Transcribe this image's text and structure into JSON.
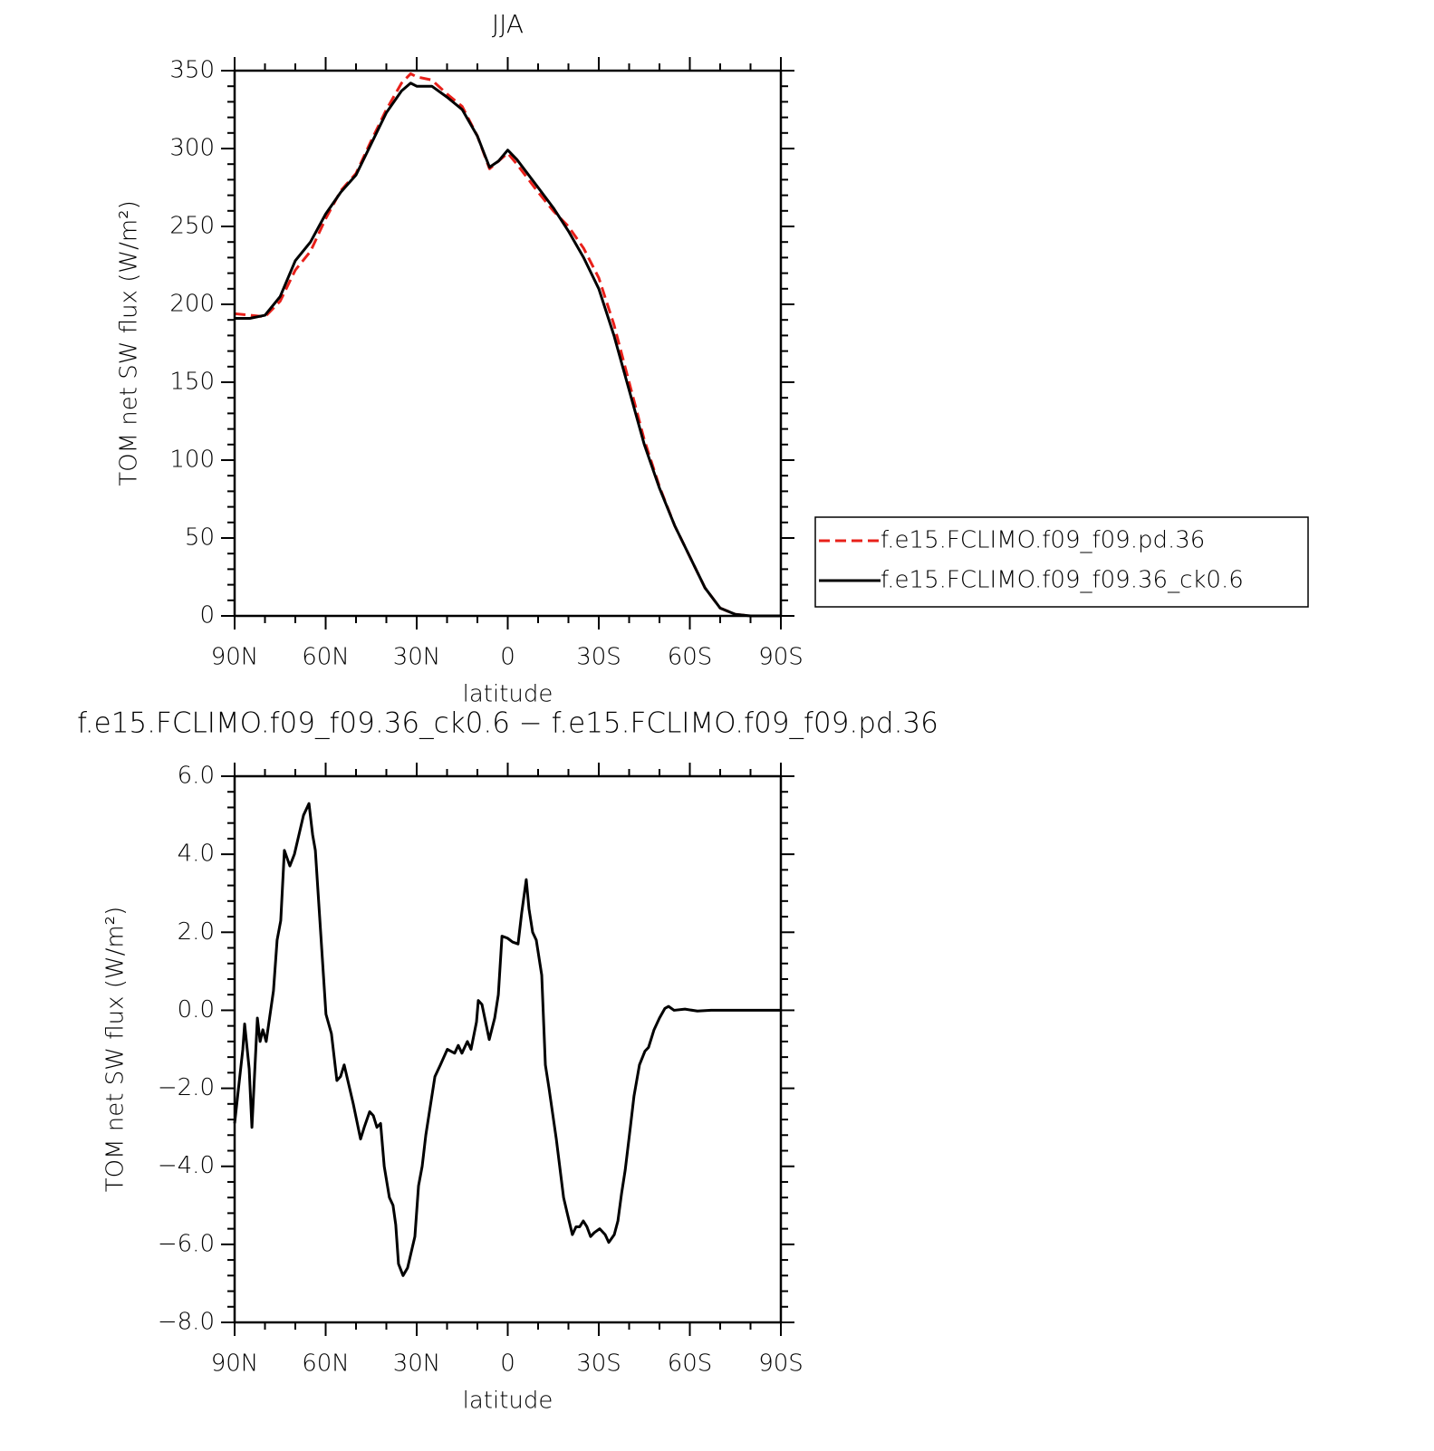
{
  "chart_data": [
    {
      "type": "line",
      "title": "JJA",
      "xlabel": "latitude",
      "ylabel": "TOM net SW flux (W/m²)",
      "xlim": [
        90,
        -90
      ],
      "ylim": [
        0,
        350
      ],
      "xticks": [
        {
          "value": 90,
          "label": "90N"
        },
        {
          "value": 60,
          "label": "60N"
        },
        {
          "value": 30,
          "label": "30N"
        },
        0,
        {
          "value": -30,
          "label": "30S"
        },
        {
          "value": -60,
          "label": "60S"
        },
        {
          "value": -90,
          "label": "90S"
        }
      ],
      "yticks": [
        0,
        50,
        100,
        150,
        200,
        250,
        300,
        350
      ],
      "legend": "outside-right",
      "x": [
        90,
        85,
        80,
        75,
        70,
        65,
        60,
        55,
        50,
        45,
        40,
        35,
        32,
        30,
        25,
        20,
        15,
        10,
        6,
        3,
        0,
        -3,
        -10,
        -15,
        -20,
        -25,
        -30,
        -35,
        -40,
        -45,
        -50,
        -55,
        -60,
        -65,
        -70,
        -75,
        -80,
        -90
      ],
      "series": [
        {
          "name": "f.e15.FCLIMO.f09_f09.pd.36",
          "color": "#e8201a",
          "line_style": "dashed",
          "values": [
            194,
            193,
            192,
            202,
            222,
            234,
            255,
            273,
            284,
            305,
            325,
            342,
            348,
            346,
            344,
            335,
            327,
            308,
            287,
            292,
            297,
            290,
            272,
            260,
            250,
            236,
            217,
            187,
            150,
            113,
            83,
            58,
            38,
            18,
            5,
            1,
            0,
            0
          ]
        },
        {
          "name": "f.e15.FCLIMO.f09_f09.36_ck0.6",
          "color": "#000000",
          "line_style": "solid",
          "values": [
            191,
            191,
            193,
            205,
            228,
            240,
            258,
            272,
            283,
            303,
            323,
            337,
            342,
            340,
            340,
            333,
            325,
            308,
            288,
            292,
            299,
            293,
            275,
            262,
            247,
            230,
            210,
            180,
            145,
            110,
            82,
            58,
            38,
            18,
            5,
            1,
            0,
            0
          ]
        }
      ]
    },
    {
      "type": "line",
      "title": "f.e15.FCLIMO.f09_f09.36_ck0.6 − f.e15.FCLIMO.f09_f09.pd.36",
      "xlabel": "latitude",
      "ylabel": "TOM net SW flux (W/m²)",
      "xlim": [
        90,
        -90
      ],
      "ylim": [
        -8,
        6
      ],
      "xticks": [
        {
          "value": 90,
          "label": "90N"
        },
        {
          "value": 60,
          "label": "60N"
        },
        {
          "value": 30,
          "label": "30N"
        },
        0,
        {
          "value": -30,
          "label": "30S"
        },
        {
          "value": -60,
          "label": "60S"
        },
        {
          "value": -90,
          "label": "90S"
        }
      ],
      "yticks": [
        {
          "value": -8,
          "label": "−8.0"
        },
        {
          "value": -6,
          "label": "−6.0"
        },
        {
          "value": -4,
          "label": "−4.0"
        },
        {
          "value": -2,
          "label": "−2.0"
        },
        {
          "value": 0,
          "label": "0.0"
        },
        {
          "value": 2,
          "label": "2.0"
        },
        {
          "value": 4,
          "label": "4.0"
        },
        {
          "value": 6,
          "label": "6.0"
        }
      ],
      "x": [
        90,
        87.3,
        86.7,
        85.2,
        84.3,
        82.5,
        81.6,
        80.7,
        79.6,
        77.2,
        76,
        74.8,
        73.6,
        71.8,
        70.3,
        67.3,
        65.5,
        64.3,
        63.4,
        59.9,
        58.1,
        56.3,
        55.1,
        53.9,
        52.1,
        50.9,
        48.5,
        47.3,
        45.5,
        44.3,
        43.1,
        41.9,
        40.7,
        39.0,
        37.8,
        36.9,
        36.0,
        34.5,
        33.0,
        31.8,
        30.6,
        29.4,
        28.2,
        27.0,
        25.8,
        24.0,
        22.2,
        19.9,
        18.7,
        17.5,
        16.3,
        15.1,
        13.3,
        12.1,
        10.3,
        9.7,
        8.5,
        7.3,
        6.1,
        4.3,
        3.1,
        1.9,
        0.1,
        -1.6,
        -3.4,
        -4.6,
        -6.1,
        -7.0,
        -8.2,
        -9.4,
        -11.2,
        -12.4,
        -13.6,
        -16.0,
        -18.4,
        -19.6,
        -21.3,
        -22.5,
        -23.7,
        -24.9,
        -26.1,
        -27.3,
        -28.5,
        -30.3,
        -32.1,
        -33.3,
        -35.1,
        -36.3,
        -37.5,
        -38.7,
        -40.4,
        -41.6,
        -43.4,
        -45.2,
        -46.4,
        -48.2,
        -50.0,
        -51.8,
        -53.0,
        -54.8,
        -58.4,
        -62.5,
        -67.0,
        -71.5,
        -90
      ],
      "series": [
        {
          "color": "#000000",
          "line_style": "solid",
          "values": [
            -2.9,
            -1.0,
            -0.35,
            -1.5,
            -3.0,
            -0.2,
            -0.8,
            -0.5,
            -0.8,
            0.5,
            1.8,
            2.3,
            4.1,
            3.7,
            4.0,
            5.0,
            5.3,
            4.5,
            4.1,
            -0.1,
            -0.6,
            -1.8,
            -1.7,
            -1.4,
            -2.0,
            -2.4,
            -3.3,
            -3.0,
            -2.6,
            -2.7,
            -3.0,
            -2.9,
            -4.0,
            -4.8,
            -5.0,
            -5.5,
            -6.5,
            -6.8,
            -6.6,
            -6.2,
            -5.8,
            -4.5,
            -4.0,
            -3.2,
            -2.6,
            -1.7,
            -1.4,
            -1.0,
            -1.05,
            -1.1,
            -0.9,
            -1.1,
            -0.8,
            -1.0,
            -0.3,
            0.25,
            0.15,
            -0.3,
            -0.75,
            -0.2,
            0.4,
            1.9,
            1.85,
            1.75,
            1.7,
            2.5,
            3.35,
            2.6,
            2.0,
            1.8,
            0.9,
            -1.4,
            -2.0,
            -3.3,
            -4.8,
            -5.2,
            -5.75,
            -5.55,
            -5.55,
            -5.4,
            -5.55,
            -5.8,
            -5.7,
            -5.6,
            -5.75,
            -5.95,
            -5.75,
            -5.4,
            -4.7,
            -4.1,
            -3.0,
            -2.2,
            -1.4,
            -1.05,
            -0.95,
            -0.5,
            -0.2,
            0.05,
            0.1,
            0,
            0.03,
            -0.02,
            0,
            0,
            0
          ]
        }
      ]
    }
  ]
}
